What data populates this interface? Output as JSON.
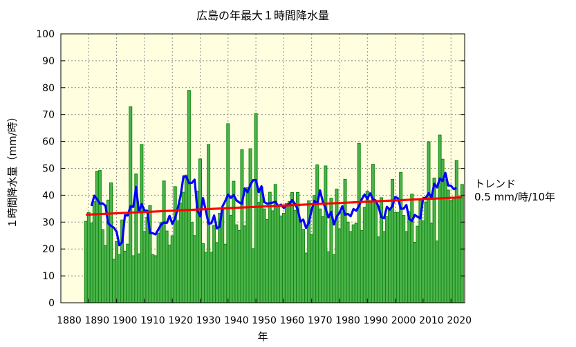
{
  "chart_data": {
    "type": "bar",
    "title": "広島の年最大１時間降水量",
    "xlabel": "年",
    "ylabel": "１時間降水量（mm/時）",
    "xlim": [
      1880,
      2024
    ],
    "ylim": [
      0,
      100
    ],
    "xticks": [
      "1880",
      "1890",
      "1900",
      "1910",
      "1920",
      "1930",
      "1940",
      "1950",
      "1960",
      "1970",
      "1980",
      "1990",
      "2000",
      "2010",
      "2020"
    ],
    "yticks": [
      "0",
      "10",
      "20",
      "30",
      "40",
      "50",
      "60",
      "70",
      "80",
      "90",
      "100"
    ],
    "grid": true,
    "start_year": 1889,
    "values": [
      30.3,
      33.6,
      29.7,
      37.6,
      48.9,
      49.2,
      27.2,
      21.3,
      38.2,
      44.6,
      16.2,
      22.8,
      17.9,
      30.8,
      19.2,
      21.8,
      72.9,
      17.5,
      47.9,
      18.2,
      58.9,
      26.5,
      31.8,
      36.1,
      17.9,
      17.5,
      25.9,
      29.9,
      45.3,
      26.7,
      21.5,
      24.9,
      43.2,
      30.5,
      37,
      41.1,
      47.5,
      79.0,
      29.9,
      25.0,
      41.5,
      53.5,
      22.0,
      18.8,
      58.9,
      18.8,
      28.8,
      22.4,
      33.3,
      35.0,
      21.8,
      66.6,
      32.5,
      45.2,
      29.0,
      26.9,
      56.9,
      28.6,
      42.8,
      57.3,
      20.1,
      70.4,
      37.4,
      43,
      34.9,
      31.0,
      41.1,
      34.2,
      44.0,
      36,
      32.3,
      33.3,
      36.9,
      37.7,
      41.0,
      34.4,
      41.0,
      29.9,
      27.3,
      18.5,
      37.9,
      25.4,
      39.9,
      51.3,
      34.9,
      32.0,
      50.9,
      19.0,
      38.9,
      17.9,
      42.3,
      27.5,
      33.8,
      45.9,
      30.0,
      26.5,
      29.0,
      29.5,
      59.3,
      26.9,
      35.5,
      41.5,
      38,
      51.5,
      37,
      24.5,
      39.1,
      26.5,
      32.0,
      35,
      45.9,
      33.6,
      33.6,
      48.5,
      32.5,
      26.5,
      33.9,
      40.4,
      22.5,
      28.5,
      38.0,
      30.5,
      37.5,
      59.9,
      29.5,
      46.4,
      23.0,
      62.4,
      53.4,
      45.8,
      41.9,
      38.0,
      39,
      52.9,
      39.5,
      44.0
    ],
    "moving_average_window": 5,
    "trend": {
      "label": "トレンド",
      "value_label": "0.5 mm/時/10年",
      "slope_per_decade": 0.5
    },
    "colors": {
      "bar": "#4db34d",
      "bar_edge": "#118811",
      "moving_average": "#0000ff",
      "trend": "#ff0000",
      "plot_bg": "#ffffe0"
    }
  }
}
